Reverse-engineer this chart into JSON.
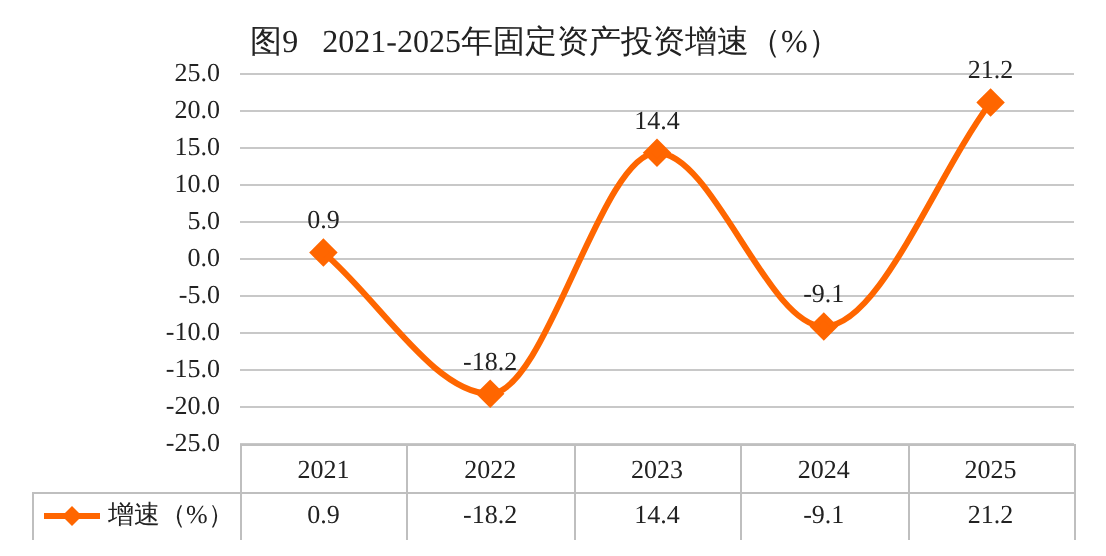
{
  "chart_data": {
    "type": "line",
    "title": "图9   2021-2025年固定资产投资增速（%）",
    "categories": [
      "2021",
      "2022",
      "2023",
      "2024",
      "2025"
    ],
    "series": [
      {
        "name": "增速（%）",
        "color": "#ff6600",
        "values": [
          0.9,
          -18.2,
          14.4,
          -9.1,
          21.2
        ],
        "value_labels": [
          "0.9",
          "-18.2",
          "14.4",
          "-9.1",
          "21.2"
        ]
      }
    ],
    "ylim": [
      -25,
      25
    ],
    "yticks": [
      {
        "value": -25,
        "label": "-25.0"
      },
      {
        "value": -20,
        "label": "-20.0"
      },
      {
        "value": -15,
        "label": "-15.0"
      },
      {
        "value": -10,
        "label": "-10.0"
      },
      {
        "value": -5,
        "label": "-5.0"
      },
      {
        "value": 0,
        "label": "0.0"
      },
      {
        "value": 5,
        "label": "5.0"
      },
      {
        "value": 10,
        "label": "10.0"
      },
      {
        "value": 15,
        "label": "15.0"
      },
      {
        "value": 20,
        "label": "20.0"
      },
      {
        "value": 25,
        "label": "25.0"
      }
    ],
    "annotations": [
      "0.9",
      "-18.2",
      "14.4",
      "-9.1",
      "21.2"
    ],
    "grid": "y",
    "legend": "bottom",
    "marker": "diamond",
    "line_style": "solid"
  }
}
